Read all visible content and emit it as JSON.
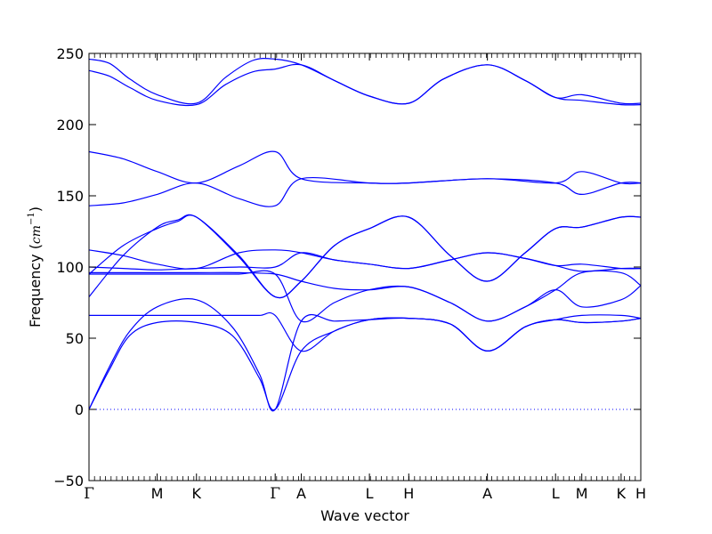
{
  "chart_data": {
    "type": "line",
    "title": "",
    "xlabel": "Wave vector",
    "ylabel_prefix": "Frequency (",
    "ylabel_unit": "cm",
    "ylabel_exponent": "−1",
    "ylabel_suffix": ")",
    "ylim": [
      -50,
      250
    ],
    "y_ticks": [
      "250",
      "200",
      "150",
      "100",
      "50",
      "0",
      "−50"
    ],
    "y_tick_values": [
      250,
      200,
      150,
      100,
      50,
      0,
      -50
    ],
    "x_tick_labels": [
      "Γ",
      "M",
      "K",
      "Γ",
      "A",
      "L",
      "H",
      "A",
      "L",
      "M",
      "K",
      "H"
    ],
    "x_tick_positions": [
      0,
      1.0,
      1.577,
      2.732,
      3.115,
      4.115,
      4.692,
      5.846,
      6.846,
      7.231,
      7.808,
      8.097
    ],
    "zero_line": true,
    "line_color": "#0000ff",
    "series": [
      {
        "x": [
          0,
          0.3,
          0.6,
          1.0,
          1.577,
          2.0,
          2.4,
          2.732,
          3.115,
          3.6,
          4.115,
          4.692,
          5.2,
          5.846,
          6.4,
          6.846,
          7.231,
          7.808,
          8.097
        ],
        "values": [
          246,
          243,
          232,
          221,
          215,
          233,
          245,
          246,
          242,
          231,
          220,
          215,
          232,
          242,
          231,
          219,
          221,
          215,
          215
        ]
      },
      {
        "x": [
          0,
          0.3,
          0.6,
          1.0,
          1.577,
          2.0,
          2.4,
          2.732,
          3.115,
          3.6,
          4.115,
          4.692,
          5.2,
          5.846,
          6.4,
          6.846,
          7.231,
          7.808,
          8.097
        ],
        "values": [
          238,
          234,
          226,
          217,
          214,
          228,
          237,
          239,
          242,
          231,
          220,
          215,
          232,
          242,
          231,
          219,
          217,
          214,
          214
        ]
      },
      {
        "x": [
          0,
          0.5,
          1.0,
          1.577,
          2.2,
          2.732,
          3.115,
          4.115,
          4.692,
          5.846,
          6.846,
          7.231,
          7.808,
          8.097
        ],
        "values": [
          181,
          176,
          167,
          159,
          171,
          181,
          162,
          159,
          159,
          162,
          159,
          167,
          159,
          159
        ]
      },
      {
        "x": [
          0,
          0.5,
          1.0,
          1.577,
          2.2,
          2.732,
          3.115,
          4.115,
          4.692,
          5.846,
          6.846,
          7.231,
          7.808,
          8.097
        ],
        "values": [
          143,
          145,
          151,
          159,
          148,
          143,
          162,
          159,
          159,
          162,
          159,
          151,
          159,
          159
        ]
      },
      {
        "x": [
          0,
          0.5,
          1.0,
          1.3,
          1.577,
          2.2,
          2.732,
          3.115,
          3.6,
          4.115,
          4.692,
          5.3,
          5.846,
          6.4,
          6.846,
          7.231,
          7.808,
          8.097
        ],
        "values": [
          95,
          115,
          127,
          132,
          135,
          108,
          79,
          90,
          115,
          127,
          135,
          108,
          90,
          110,
          127,
          128,
          135,
          135
        ]
      },
      {
        "x": [
          0,
          0.5,
          1.0,
          1.3,
          1.577,
          2.2,
          2.732,
          3.115,
          3.6,
          4.115,
          4.692,
          5.3,
          5.846,
          6.4,
          6.846,
          7.231,
          7.808,
          8.097
        ],
        "values": [
          79,
          108,
          128,
          133,
          135,
          107,
          79,
          90,
          115,
          127,
          135,
          108,
          90,
          110,
          127,
          128,
          135,
          135
        ]
      },
      {
        "x": [
          0,
          0.5,
          1.0,
          1.577,
          2.2,
          2.732,
          3.115,
          3.6,
          4.115,
          4.692,
          5.3,
          5.846,
          6.4,
          6.846,
          7.231,
          7.808,
          8.097
        ],
        "values": [
          112,
          108,
          102,
          99,
          110,
          112,
          110,
          105,
          102,
          99,
          105,
          110,
          106,
          101,
          102,
          99,
          99
        ]
      },
      {
        "x": [
          0,
          0.5,
          1.0,
          1.577,
          2.2,
          2.732,
          3.115,
          3.6,
          4.115,
          4.692,
          5.3,
          5.846,
          6.4,
          6.846,
          7.231,
          7.808,
          8.097
        ],
        "values": [
          100,
          99,
          98,
          99,
          100,
          100,
          110,
          105,
          102,
          99,
          105,
          110,
          106,
          101,
          97,
          99,
          99
        ]
      },
      {
        "x": [
          0,
          0.5,
          1.0,
          1.577,
          2.2,
          2.732,
          3.115,
          3.6,
          4.115,
          4.692,
          5.3,
          5.846,
          6.4,
          6.846,
          7.231,
          7.808,
          8.097
        ],
        "values": [
          96,
          96,
          96,
          96,
          96,
          95,
          90,
          85,
          84,
          86,
          75,
          62,
          72,
          84,
          96,
          96,
          87
        ]
      },
      {
        "x": [
          0,
          0.5,
          1.0,
          1.577,
          2.2,
          2.732,
          3.115,
          3.6,
          4.115,
          4.692,
          5.3,
          5.846,
          6.4,
          6.846,
          7.231,
          7.808,
          8.097
        ],
        "values": [
          95,
          95,
          95,
          95,
          95,
          95,
          62,
          75,
          84,
          86,
          75,
          62,
          72,
          84,
          72,
          77,
          87
        ]
      },
      {
        "x": [
          0,
          0.3,
          0.6,
          1.0,
          1.577,
          2.1,
          2.5,
          2.732,
          3.115,
          3.6,
          4.115,
          4.692,
          5.3,
          5.846,
          6.4,
          6.846,
          7.231,
          7.808,
          8.097
        ],
        "values": [
          66,
          66,
          66,
          66,
          66,
          66,
          66,
          66,
          41,
          55,
          63,
          64,
          60,
          41,
          58,
          63,
          66,
          66,
          64
        ]
      },
      {
        "x": [
          0,
          0.3,
          0.6,
          1.0,
          1.577,
          2.1,
          2.5,
          2.732,
          3.115,
          3.6,
          4.115,
          4.692,
          5.3,
          5.846,
          6.4,
          6.846,
          7.231,
          7.808,
          8.097
        ],
        "values": [
          0,
          30,
          55,
          72,
          77,
          58,
          25,
          0,
          62,
          62,
          63,
          64,
          60,
          41,
          58,
          63,
          61,
          62,
          64
        ]
      },
      {
        "x": [
          0,
          0.3,
          0.6,
          1.0,
          1.577,
          2.1,
          2.5,
          2.732,
          3.115,
          3.6,
          4.115,
          4.692,
          5.3,
          5.846,
          6.4,
          6.846,
          7.231,
          7.808,
          8.097
        ],
        "values": [
          0,
          28,
          52,
          61,
          61,
          52,
          22,
          0,
          41,
          55,
          63,
          64,
          60,
          41,
          58,
          63,
          61,
          62,
          64
        ]
      }
    ]
  }
}
